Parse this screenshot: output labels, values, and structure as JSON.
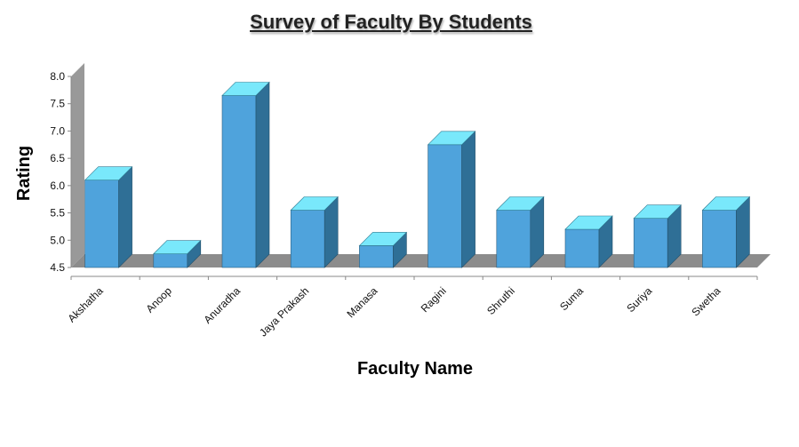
{
  "chart_data": {
    "type": "bar",
    "title": "Survey of Faculty By Students",
    "xlabel": "Faculty Name",
    "ylabel": "Rating",
    "categories": [
      "Akshatha",
      "Anoop",
      "Anuradha",
      "Jaya Prakash",
      "Manasa",
      "Ragini",
      "Shruthi",
      "Suma",
      "Suriya",
      "Swetha"
    ],
    "values": [
      6.1,
      4.75,
      7.65,
      5.55,
      4.9,
      6.75,
      5.55,
      5.2,
      5.4,
      5.55
    ],
    "ylim": [
      4.5,
      8.0
    ],
    "yticks": [
      "4.5",
      "5.0",
      "5.5",
      "6.0",
      "6.5",
      "7.0",
      "7.5",
      "8.0"
    ],
    "grid": false,
    "legend": "none",
    "colors": {
      "bar_front": "#4fa3dc",
      "bar_side": "#2f6f96",
      "bar_top": "#79e8fb",
      "wall": "#999999",
      "floor": "#8c8c8c"
    }
  }
}
